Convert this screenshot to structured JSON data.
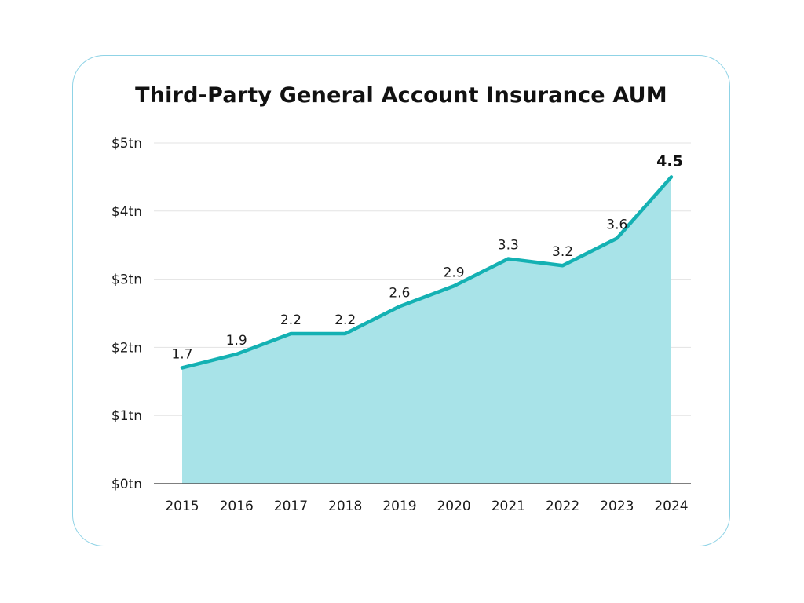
{
  "chart_data": {
    "type": "area",
    "title": "Third-Party General Account Insurance AUM",
    "xlabel": "",
    "ylabel": "",
    "categories": [
      "2015",
      "2016",
      "2017",
      "2018",
      "2019",
      "2020",
      "2021",
      "2022",
      "2023",
      "2024"
    ],
    "values": [
      1.7,
      1.9,
      2.2,
      2.2,
      2.6,
      2.9,
      3.3,
      3.2,
      3.6,
      4.5
    ],
    "data_labels": [
      "1.7",
      "1.9",
      "2.2",
      "2.2",
      "2.6",
      "2.9",
      "3.3",
      "3.2",
      "3.6",
      "4.5"
    ],
    "y_ticks": [
      0,
      1,
      2,
      3,
      4,
      5
    ],
    "y_tick_labels": [
      "$0tn",
      "$1tn",
      "$2tn",
      "$3tn",
      "$4tn",
      "$5tn"
    ],
    "ylim": [
      0,
      5
    ],
    "grid": true,
    "legend": "none",
    "colors": {
      "line": "#14b1b3",
      "fill": "#a8e3e8",
      "grid": "#e3e3e3",
      "axis": "#555555",
      "card_border": "#8fd3e6"
    }
  }
}
